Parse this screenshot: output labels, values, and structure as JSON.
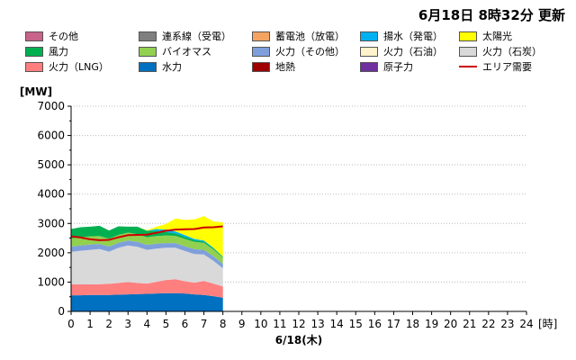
{
  "header": {
    "updated": "6月18日  8時32分 更新"
  },
  "legend": [
    {
      "name": "その他",
      "color": "#c8638a"
    },
    {
      "name": "連系線（受電）",
      "color": "#7f7f7f"
    },
    {
      "name": "蓄電池（放電）",
      "color": "#f4a460"
    },
    {
      "name": "揚水（発電）",
      "color": "#00b0f0"
    },
    {
      "name": "太陽光",
      "color": "#ffff00"
    },
    {
      "name": "風力",
      "color": "#00b050"
    },
    {
      "name": "バイオマス",
      "color": "#92d050"
    },
    {
      "name": "火力（その他）",
      "color": "#7f9fdc"
    },
    {
      "name": "火力（石油）",
      "color": "#fff2cc"
    },
    {
      "name": "火力（石炭）",
      "color": "#d9d9d9"
    },
    {
      "name": "火力（LNG）",
      "color": "#ff7f7f"
    },
    {
      "name": "水力",
      "color": "#0070c0"
    },
    {
      "name": "地熱",
      "color": "#a00000"
    },
    {
      "name": "原子力",
      "color": "#7030a0"
    },
    {
      "name": "エリア需要",
      "color": "#cc0000",
      "line": true
    }
  ],
  "chart_data": {
    "type": "area",
    "stacked": true,
    "ylabel": "[MW]",
    "xlabel": "6/18(木)",
    "x_unit": "[時]",
    "xlim": [
      0,
      24
    ],
    "ylim": [
      0,
      7000
    ],
    "yticks": [
      0,
      1000,
      2000,
      3000,
      4000,
      5000,
      6000,
      7000
    ],
    "xticks": [
      0,
      1,
      2,
      3,
      4,
      5,
      6,
      7,
      8,
      9,
      10,
      11,
      12,
      13,
      14,
      15,
      16,
      17,
      18,
      19,
      20,
      21,
      22,
      23,
      24
    ],
    "x": [
      0,
      0.5,
      1,
      1.5,
      2,
      2.5,
      3,
      3.5,
      4,
      4.5,
      5,
      5.5,
      6,
      6.5,
      7,
      7.5,
      8
    ],
    "series": [
      {
        "name": "水力",
        "color": "#0070c0",
        "values": [
          550,
          550,
          560,
          560,
          560,
          570,
          580,
          590,
          600,
          610,
          620,
          620,
          610,
          580,
          560,
          520,
          470
        ]
      },
      {
        "name": "火力（LNG）",
        "color": "#ff7f7f",
        "values": [
          380,
          370,
          360,
          370,
          380,
          400,
          420,
          380,
          350,
          400,
          450,
          480,
          420,
          400,
          480,
          430,
          380
        ]
      },
      {
        "name": "火力（石炭）",
        "color": "#d9d9d9",
        "values": [
          1100,
          1150,
          1180,
          1200,
          1100,
          1200,
          1250,
          1230,
          1150,
          1130,
          1100,
          1070,
          1030,
          980,
          900,
          780,
          620
        ]
      },
      {
        "name": "火力（その他）",
        "color": "#7f9fdc",
        "values": [
          180,
          180,
          180,
          170,
          170,
          170,
          170,
          170,
          170,
          170,
          160,
          160,
          160,
          160,
          160,
          150,
          150
        ]
      },
      {
        "name": "バイオマス",
        "color": "#92d050",
        "values": [
          280,
          280,
          280,
          270,
          270,
          270,
          270,
          260,
          260,
          260,
          260,
          250,
          250,
          250,
          240,
          230,
          220
        ]
      },
      {
        "name": "風力",
        "color": "#00b050",
        "values": [
          320,
          340,
          330,
          350,
          280,
          290,
          200,
          260,
          220,
          180,
          120,
          80,
          70,
          60,
          50,
          40,
          30
        ]
      },
      {
        "name": "揚水（発電）",
        "color": "#00b0f0",
        "values": [
          0,
          0,
          0,
          0,
          0,
          0,
          0,
          0,
          0,
          60,
          80,
          70,
          60,
          40,
          30,
          20,
          0
        ]
      },
      {
        "name": "太陽光",
        "color": "#ffff00",
        "values": [
          0,
          0,
          0,
          0,
          0,
          0,
          0,
          0,
          20,
          80,
          190,
          440,
          520,
          670,
          830,
          900,
          1170
        ]
      }
    ],
    "demand": {
      "name": "エリア需要",
      "color": "#cc0000",
      "values": [
        2560,
        2520,
        2460,
        2430,
        2440,
        2530,
        2600,
        2610,
        2620,
        2680,
        2750,
        2790,
        2800,
        2810,
        2860,
        2870,
        2900
      ]
    }
  }
}
